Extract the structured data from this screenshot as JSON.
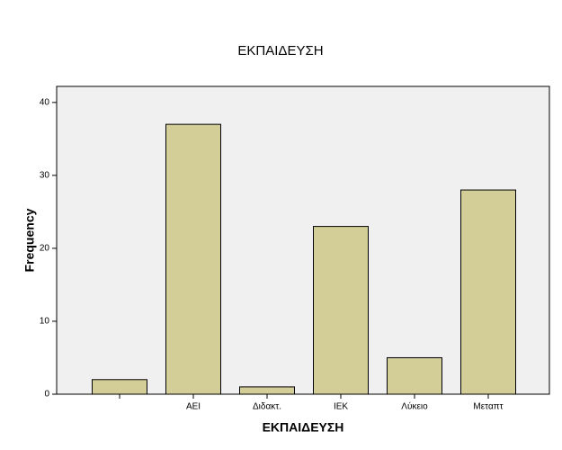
{
  "chart_data": {
    "type": "bar",
    "title": "ΕΚΠΑΙΔΕΥΣΗ",
    "x_label": "ΕΚΠΑΙΔΕΥΣΗ",
    "y_label": "Frequency",
    "categories": [
      null,
      "ΑΕΙ",
      "Διδακτ.",
      "ΙΕΚ",
      "Λύκειο",
      "Μεταπτ"
    ],
    "values": [
      2,
      37,
      1,
      23,
      5,
      28
    ],
    "color": "#d3ce97",
    "ylim": [
      0,
      42.2
    ],
    "yticks": [
      0,
      10,
      20,
      30,
      40
    ],
    "grid": false
  }
}
